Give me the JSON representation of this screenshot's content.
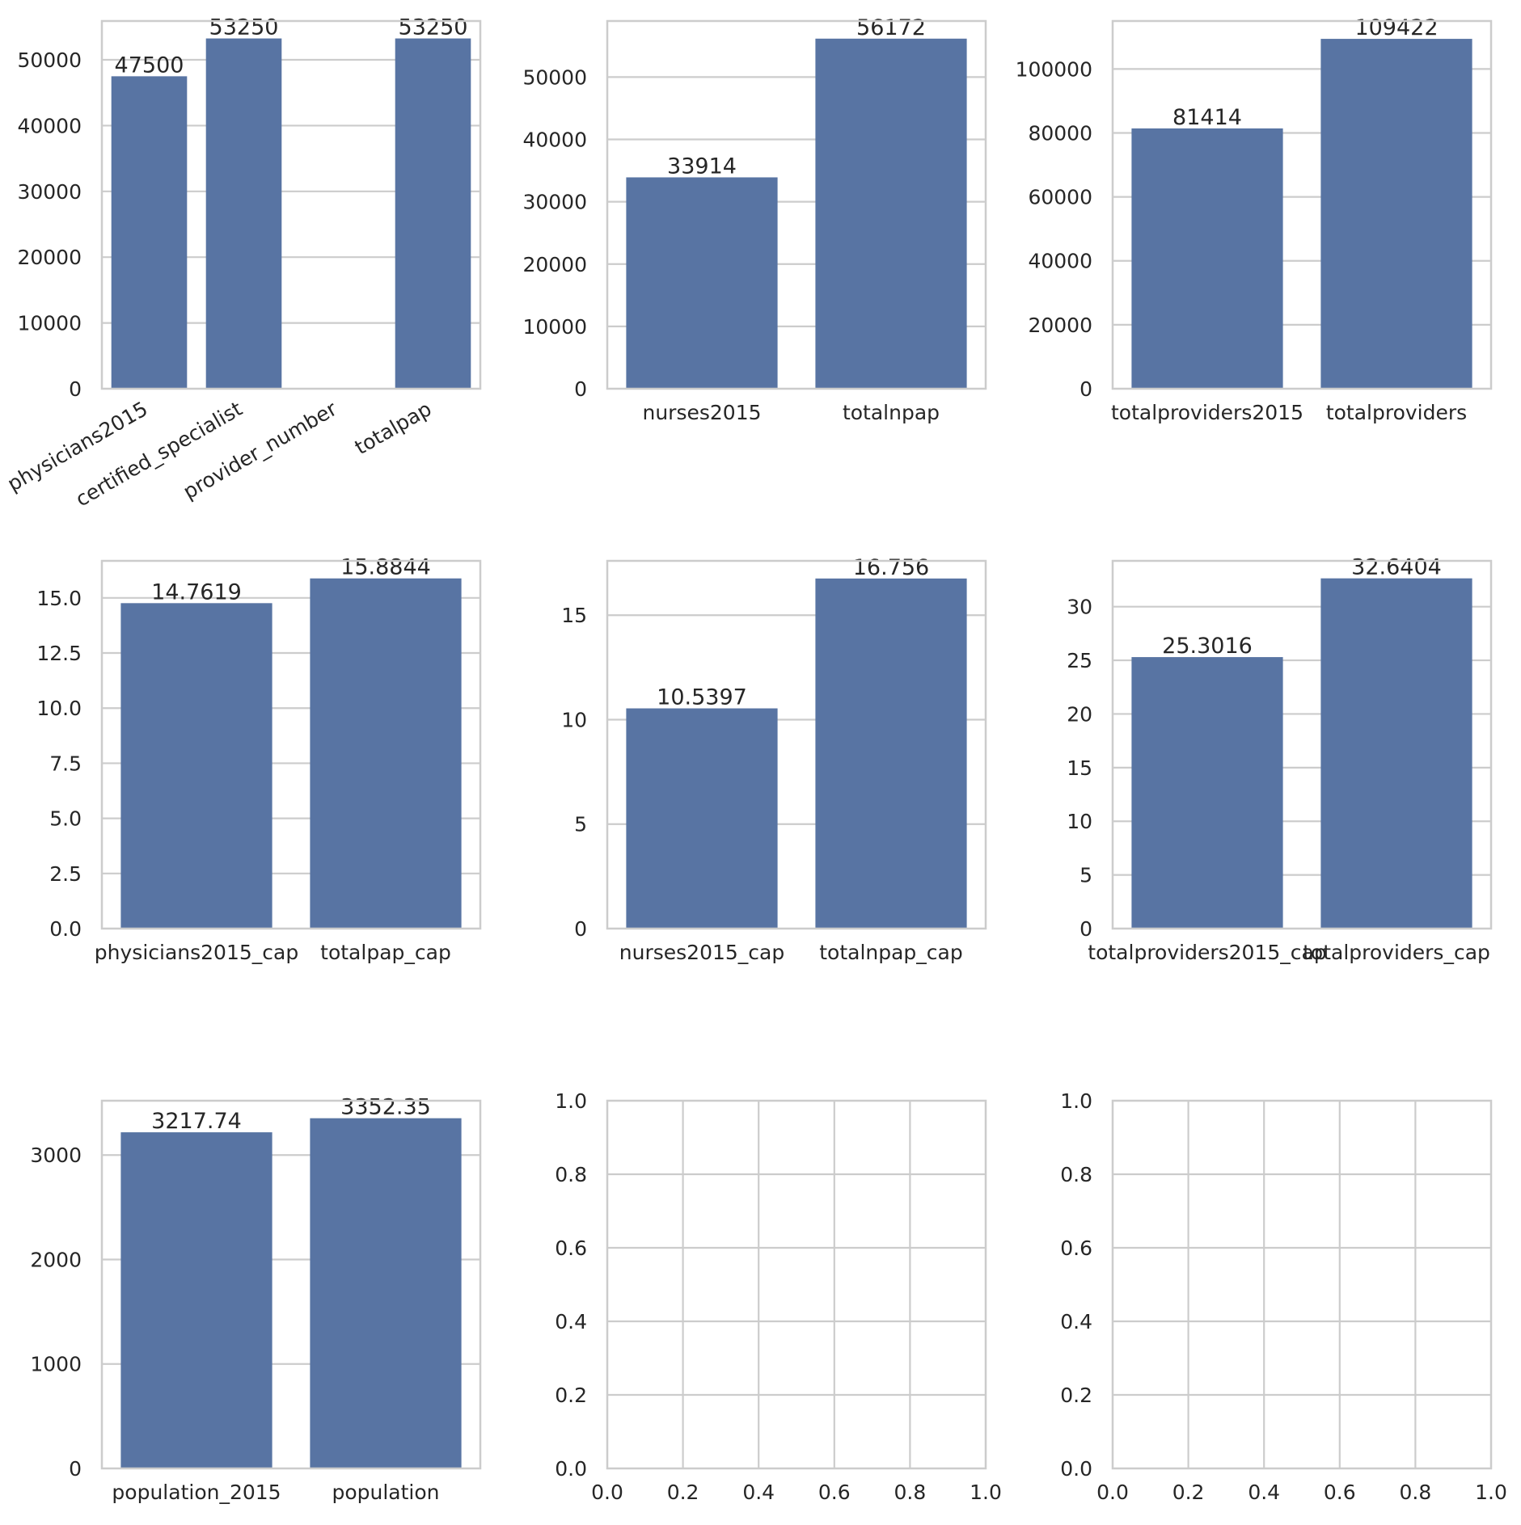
{
  "chart_data": [
    {
      "type": "bar",
      "categories": [
        "physicians2015",
        "certified_specialist",
        "provider_number",
        "totalpap"
      ],
      "values": [
        47500,
        53250,
        null,
        53250
      ],
      "data_labels": [
        "47500",
        "53250",
        "",
        "53250"
      ],
      "ylim": [
        0,
        55900
      ],
      "yticks": [
        0,
        10000,
        20000,
        30000,
        40000,
        50000
      ],
      "ytick_labels": [
        "0",
        "10000",
        "20000",
        "30000",
        "40000",
        "50000"
      ],
      "xtick_rotation": 30,
      "xlabel": "",
      "ylabel": "",
      "title": "",
      "grid": "horizontal"
    },
    {
      "type": "bar",
      "categories": [
        "nurses2015",
        "totalnpap"
      ],
      "values": [
        33914,
        56172
      ],
      "data_labels": [
        "33914",
        "56172"
      ],
      "ylim": [
        0,
        59000
      ],
      "yticks": [
        0,
        10000,
        20000,
        30000,
        40000,
        50000
      ],
      "ytick_labels": [
        "0",
        "10000",
        "20000",
        "30000",
        "40000",
        "50000"
      ],
      "xlabel": "",
      "ylabel": "",
      "title": "",
      "grid": "horizontal"
    },
    {
      "type": "bar",
      "categories": [
        "totalproviders2015",
        "totalproviders"
      ],
      "values": [
        81414,
        109422
      ],
      "data_labels": [
        "81414",
        "109422"
      ],
      "ylim": [
        0,
        115000
      ],
      "yticks": [
        0,
        20000,
        40000,
        60000,
        80000,
        100000
      ],
      "ytick_labels": [
        "0",
        "20000",
        "40000",
        "60000",
        "80000",
        "100000"
      ],
      "xlabel": "",
      "ylabel": "",
      "title": "",
      "grid": "horizontal"
    },
    {
      "type": "bar",
      "categories": [
        "physicians2015_cap",
        "totalpap_cap"
      ],
      "values": [
        14.7619,
        15.8844
      ],
      "data_labels": [
        "14.7619",
        "15.8844"
      ],
      "ylim": [
        0,
        16.68
      ],
      "yticks": [
        0,
        2.5,
        5,
        7.5,
        10,
        12.5,
        15
      ],
      "ytick_labels": [
        "0.0",
        "2.5",
        "5.0",
        "7.5",
        "10.0",
        "12.5",
        "15.0"
      ],
      "xlabel": "",
      "ylabel": "",
      "title": "",
      "grid": "horizontal"
    },
    {
      "type": "bar",
      "categories": [
        "nurses2015_cap",
        "totalnpap_cap"
      ],
      "values": [
        10.5397,
        16.756
      ],
      "data_labels": [
        "10.5397",
        "16.756"
      ],
      "ylim": [
        0,
        17.6
      ],
      "yticks": [
        0,
        5,
        10,
        15
      ],
      "ytick_labels": [
        "0",
        "5",
        "10",
        "15"
      ],
      "xlabel": "",
      "ylabel": "",
      "title": "",
      "grid": "horizontal"
    },
    {
      "type": "bar",
      "categories": [
        "totalproviders2015_cap",
        "totalproviders_cap"
      ],
      "values": [
        25.3016,
        32.6404
      ],
      "data_labels": [
        "25.3016",
        "32.6404"
      ],
      "ylim": [
        0,
        34.27
      ],
      "yticks": [
        0,
        5,
        10,
        15,
        20,
        25,
        30
      ],
      "ytick_labels": [
        "0",
        "5",
        "10",
        "15",
        "20",
        "25",
        "30"
      ],
      "xlabel": "",
      "ylabel": "",
      "title": "",
      "grid": "horizontal"
    },
    {
      "type": "bar",
      "categories": [
        "population_2015",
        "population"
      ],
      "values": [
        3217.74,
        3352.35
      ],
      "data_labels": [
        "3217.74",
        "3352.35"
      ],
      "ylim": [
        0,
        3520
      ],
      "yticks": [
        0,
        1000,
        2000,
        3000
      ],
      "ytick_labels": [
        "0",
        "1000",
        "2000",
        "3000"
      ],
      "xlabel": "",
      "ylabel": "",
      "title": "",
      "grid": "horizontal"
    },
    {
      "type": "empty",
      "xlim": [
        0,
        1
      ],
      "ylim": [
        0,
        1
      ],
      "xticks": [
        0,
        0.2,
        0.4,
        0.6,
        0.8,
        1.0
      ],
      "xtick_labels": [
        "0.0",
        "0.2",
        "0.4",
        "0.6",
        "0.8",
        "1.0"
      ],
      "yticks": [
        0,
        0.2,
        0.4,
        0.6,
        0.8,
        1.0
      ],
      "ytick_labels": [
        "0.0",
        "0.2",
        "0.4",
        "0.6",
        "0.8",
        "1.0"
      ],
      "grid": "both"
    },
    {
      "type": "empty",
      "xlim": [
        0,
        1
      ],
      "ylim": [
        0,
        1
      ],
      "xticks": [
        0,
        0.2,
        0.4,
        0.6,
        0.8,
        1.0
      ],
      "xtick_labels": [
        "0.0",
        "0.2",
        "0.4",
        "0.6",
        "0.8",
        "1.0"
      ],
      "yticks": [
        0,
        0.2,
        0.4,
        0.6,
        0.8,
        1.0
      ],
      "ytick_labels": [
        "0.0",
        "0.2",
        "0.4",
        "0.6",
        "0.8",
        "1.0"
      ],
      "grid": "both"
    }
  ],
  "colors": {
    "bar": "#5874a3",
    "grid": "#cccccc",
    "text": "#262626"
  }
}
